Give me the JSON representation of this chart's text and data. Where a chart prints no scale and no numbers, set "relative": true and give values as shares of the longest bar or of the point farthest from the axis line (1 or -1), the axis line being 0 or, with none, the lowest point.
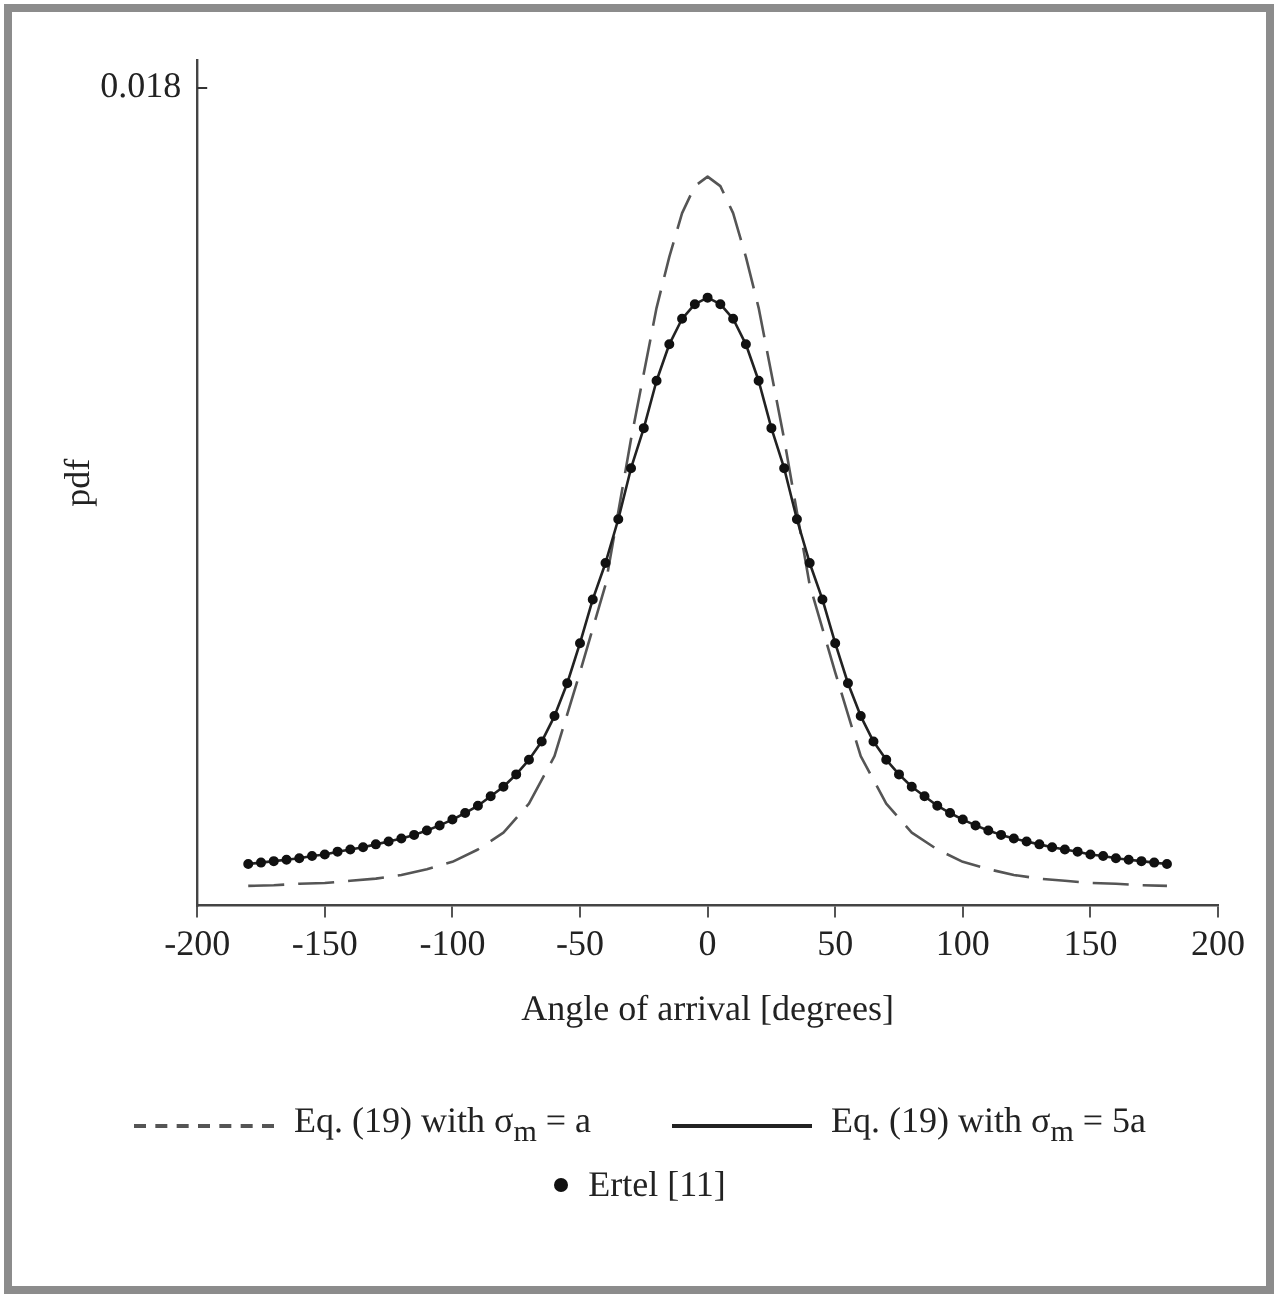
{
  "chart_data": {
    "type": "line",
    "xlabel": "Angle of arrival [degrees]",
    "ylabel": "pdf",
    "relative": true,
    "xlim": [
      -200,
      200
    ],
    "xticks": [
      -200,
      -150,
      -100,
      -50,
      0,
      50,
      100,
      150,
      200
    ],
    "grid": false,
    "legend": "bottom",
    "annotations": [
      "0.018"
    ],
    "series": [
      {
        "name": "Eq. (19) with σ$_{m}$ = a",
        "line_style": "dashed",
        "marker": "none",
        "color": "#555555",
        "x": [
          -180,
          -170,
          -160,
          -150,
          -140,
          -130,
          -120,
          -110,
          -100,
          -90,
          -80,
          -70,
          -60,
          -50,
          -40,
          -30,
          -20,
          -15,
          -10,
          -5,
          0,
          5,
          10,
          15,
          20,
          30,
          40,
          50,
          60,
          70,
          80,
          90,
          100,
          110,
          120,
          130,
          140,
          150,
          160,
          170,
          180
        ],
        "values": [
          0.027,
          0.028,
          0.03,
          0.031,
          0.034,
          0.037,
          0.042,
          0.05,
          0.06,
          0.077,
          0.1,
          0.14,
          0.205,
          0.32,
          0.44,
          0.64,
          0.82,
          0.89,
          0.95,
          0.987,
          1,
          0.987,
          0.95,
          0.89,
          0.82,
          0.64,
          0.44,
          0.32,
          0.205,
          0.14,
          0.1,
          0.077,
          0.06,
          0.05,
          0.042,
          0.037,
          0.034,
          0.031,
          0.03,
          0.028,
          0.027
        ]
      },
      {
        "name": "Eq. (19) with σ$_{m}$ = 5a",
        "line_style": "solid",
        "marker": "none",
        "color": "#222222",
        "x": [
          -180,
          -175,
          -170,
          -165,
          -160,
          -155,
          -150,
          -145,
          -140,
          -135,
          -130,
          -125,
          -120,
          -115,
          -110,
          -105,
          -100,
          -95,
          -90,
          -85,
          -80,
          -75,
          -70,
          -65,
          -60,
          -55,
          -50,
          -45,
          -40,
          -35,
          -30,
          -25,
          -20,
          -15,
          -10,
          -5,
          0,
          5,
          10,
          15,
          20,
          25,
          30,
          35,
          40,
          45,
          50,
          55,
          60,
          65,
          70,
          75,
          80,
          85,
          90,
          95,
          100,
          105,
          110,
          115,
          120,
          125,
          130,
          135,
          140,
          145,
          150,
          155,
          160,
          165,
          170,
          175,
          180
        ],
        "values": [
          0.057,
          0.059,
          0.061,
          0.063,
          0.065,
          0.068,
          0.07,
          0.074,
          0.077,
          0.08,
          0.084,
          0.088,
          0.092,
          0.097,
          0.103,
          0.11,
          0.118,
          0.127,
          0.137,
          0.15,
          0.163,
          0.18,
          0.2,
          0.225,
          0.26,
          0.305,
          0.36,
          0.42,
          0.47,
          0.53,
          0.6,
          0.655,
          0.72,
          0.77,
          0.805,
          0.825,
          0.834,
          0.825,
          0.805,
          0.77,
          0.72,
          0.655,
          0.6,
          0.53,
          0.47,
          0.42,
          0.36,
          0.305,
          0.26,
          0.225,
          0.2,
          0.18,
          0.163,
          0.15,
          0.137,
          0.127,
          0.118,
          0.11,
          0.103,
          0.097,
          0.092,
          0.088,
          0.084,
          0.08,
          0.077,
          0.074,
          0.07,
          0.068,
          0.065,
          0.063,
          0.061,
          0.059,
          0.057
        ]
      },
      {
        "name": "Ertel [11]",
        "type": "scatter",
        "marker": "circle",
        "color": "#111111",
        "x": [
          -180,
          -175,
          -170,
          -165,
          -160,
          -155,
          -150,
          -145,
          -140,
          -135,
          -130,
          -125,
          -120,
          -115,
          -110,
          -105,
          -100,
          -95,
          -90,
          -85,
          -80,
          -75,
          -70,
          -65,
          -60,
          -55,
          -50,
          -45,
          -40,
          -35,
          -30,
          -25,
          -20,
          -15,
          -10,
          -5,
          0,
          5,
          10,
          15,
          20,
          25,
          30,
          35,
          40,
          45,
          50,
          55,
          60,
          65,
          70,
          75,
          80,
          85,
          90,
          95,
          100,
          105,
          110,
          115,
          120,
          125,
          130,
          135,
          140,
          145,
          150,
          155,
          160,
          165,
          170,
          175,
          180
        ],
        "values": [
          0.057,
          0.059,
          0.061,
          0.063,
          0.065,
          0.068,
          0.07,
          0.074,
          0.077,
          0.08,
          0.084,
          0.088,
          0.092,
          0.097,
          0.103,
          0.11,
          0.118,
          0.127,
          0.137,
          0.15,
          0.163,
          0.18,
          0.2,
          0.225,
          0.26,
          0.305,
          0.36,
          0.42,
          0.47,
          0.53,
          0.6,
          0.655,
          0.72,
          0.77,
          0.805,
          0.825,
          0.834,
          0.825,
          0.805,
          0.77,
          0.72,
          0.655,
          0.6,
          0.53,
          0.47,
          0.42,
          0.36,
          0.305,
          0.26,
          0.225,
          0.2,
          0.18,
          0.163,
          0.15,
          0.137,
          0.127,
          0.118,
          0.11,
          0.103,
          0.097,
          0.092,
          0.088,
          0.084,
          0.08,
          0.077,
          0.074,
          0.07,
          0.068,
          0.065,
          0.063,
          0.061,
          0.059,
          0.057
        ]
      }
    ]
  }
}
